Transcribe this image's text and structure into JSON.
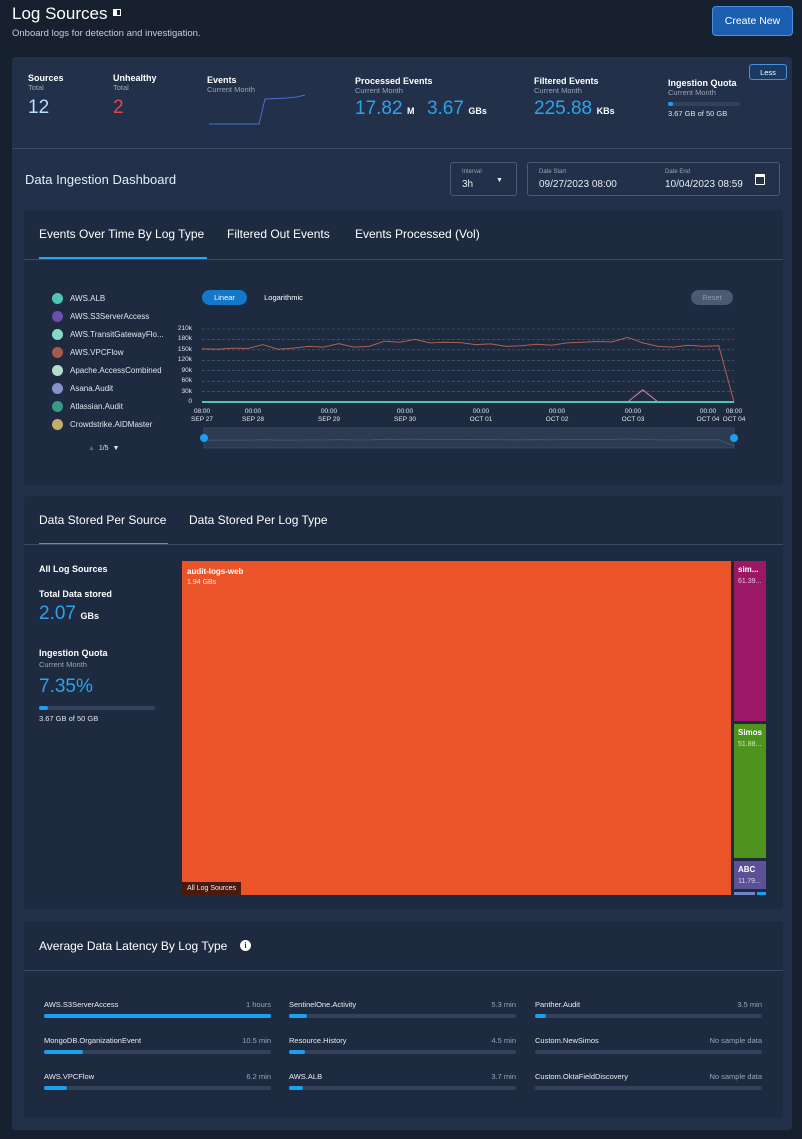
{
  "header": {
    "title": "Log Sources",
    "subtitle": "Onboard logs for detection and investigation.",
    "create_label": "Create New"
  },
  "stats": {
    "sources": {
      "label": "Sources",
      "sub": "Total",
      "value": "12"
    },
    "unhealthy": {
      "label": "Unhealthy",
      "sub": "Total",
      "value": "2",
      "color": "#e0474c"
    },
    "events": {
      "label": "Events",
      "sub": "Current Month"
    },
    "processed": {
      "label": "Processed Events",
      "sub": "Current Month",
      "value1": "17.82",
      "unit1": "M",
      "value2": "3.67",
      "unit2": "GBs"
    },
    "filtered": {
      "label": "Filtered Events",
      "sub": "Current Month",
      "value": "225.88",
      "unit": "KBs"
    },
    "quota": {
      "label": "Ingestion Quota",
      "sub": "Current Month",
      "text": "3.67 GB of 50 GB",
      "fraction": 0.0735
    },
    "less_label": "Less"
  },
  "dashboard": {
    "title": "Data Ingestion Dashboard",
    "interval_label": "Interval",
    "interval_value": "3h",
    "date_start_label": "Date Start",
    "date_start": "09/27/2023 08:00",
    "date_end_label": "Date End",
    "date_end": "10/04/2023 08:59"
  },
  "events_card": {
    "tabs": [
      "Events Over Time By Log Type",
      "Filtered Out Events",
      "Events Processed (Vol)"
    ],
    "active_tab": 0,
    "scale_linear": "Linear",
    "scale_log": "Logarithmic",
    "reset": "Reset",
    "legend": [
      {
        "name": "AWS.ALB",
        "color": "#4fc6b4"
      },
      {
        "name": "AWS.S3ServerAccess",
        "color": "#6a4fb0"
      },
      {
        "name": "AWS.TransitGatewayFlo...",
        "color": "#86d8c6"
      },
      {
        "name": "AWS.VPCFlow",
        "color": "#a65a4c"
      },
      {
        "name": "Apache.AccessCombined",
        "color": "#b5dcc8"
      },
      {
        "name": "Asana.Audit",
        "color": "#8593c8"
      },
      {
        "name": "Atlassian.Audit",
        "color": "#3a9883"
      },
      {
        "name": "Crowdstrike.AIDMaster",
        "color": "#c4ad6c"
      }
    ],
    "legend_page": "1/5"
  },
  "chart_data": {
    "type": "line",
    "ylim": [
      0,
      210000
    ],
    "yticks": [
      "0",
      "30k",
      "60k",
      "90k",
      "120k",
      "150k",
      "180k",
      "210k"
    ],
    "xticks": [
      [
        "08:00",
        "SEP 27"
      ],
      [
        "00:00",
        "SEP 28"
      ],
      [
        "00:00",
        "SEP 29"
      ],
      [
        "00:00",
        "SEP 30"
      ],
      [
        "00:00",
        "OCT 01"
      ],
      [
        "00:00",
        "OCT 02"
      ],
      [
        "00:00",
        "OCT 03"
      ],
      [
        "00:00",
        "OCT 04"
      ],
      [
        "08:00",
        "OCT 04"
      ]
    ],
    "grid": true,
    "series": [
      {
        "color": "#b0614f",
        "values": [
          153000,
          152000,
          155000,
          154000,
          165000,
          152000,
          155000,
          160000,
          158000,
          168000,
          158000,
          160000,
          175000,
          172000,
          180000,
          170000,
          172000,
          171000,
          165000,
          167000,
          160000,
          162000,
          166000,
          163000,
          170000,
          172000,
          174000,
          173000,
          186000,
          170000,
          160000,
          158000,
          163000,
          160000,
          162000,
          0
        ]
      },
      {
        "color": "#d47fae",
        "values": [
          0,
          0,
          0,
          0,
          0,
          0,
          0,
          0,
          0,
          0,
          0,
          0,
          0,
          0,
          0,
          0,
          0,
          0,
          0,
          0,
          0,
          0,
          0,
          0,
          0,
          0,
          0,
          0,
          0,
          35000,
          0,
          0,
          0,
          0,
          0,
          0
        ]
      },
      {
        "color": "#4fc6b4",
        "values": [
          0,
          0,
          0,
          0,
          0,
          0,
          0,
          0,
          0,
          0,
          0,
          0,
          0,
          0,
          0,
          0,
          0,
          0,
          0,
          0,
          0,
          0,
          0,
          0,
          0,
          0,
          0,
          0,
          0,
          0,
          0,
          0,
          0,
          0,
          0,
          0
        ]
      }
    ]
  },
  "storage_card": {
    "tabs": [
      "Data Stored Per Source",
      "Data Stored Per Log Type"
    ],
    "active_tab": 0,
    "heading": "All Log Sources",
    "total_label": "Total Data stored",
    "total_value": "2.07",
    "total_unit": "GBs",
    "quota_label": "Ingestion Quota",
    "quota_sub": "Current Month",
    "quota_pct": "7.35%",
    "quota_text": "3.67 GB of 50 GB",
    "quota_fraction": 0.0735,
    "root_label": "All Log Sources",
    "treemap": [
      {
        "name": "audit-logs-web",
        "size": "1.94 GBs",
        "color": "#ea5428"
      },
      {
        "name": "sim...",
        "size": "61.39...",
        "color": "#9c1766"
      },
      {
        "name": "Simos",
        "size": "51.88...",
        "color": "#4f931f"
      },
      {
        "name": "ABC",
        "size": "11.79...",
        "color": "#5c5196"
      }
    ]
  },
  "latency_card": {
    "title": "Average Data Latency By Log Type",
    "items": [
      {
        "name": "AWS.S3ServerAccess",
        "value": "1 hours",
        "fraction": 1.0
      },
      {
        "name": "SentinelOne.Activity",
        "value": "5.3 min",
        "fraction": 0.08
      },
      {
        "name": "Panther.Audit",
        "value": "3.5 min",
        "fraction": 0.05
      },
      {
        "name": "MongoDB.OrganizationEvent",
        "value": "10.5 min",
        "fraction": 0.17
      },
      {
        "name": "Resource.History",
        "value": "4.5 min",
        "fraction": 0.07
      },
      {
        "name": "Custom.NewSimos",
        "value": "No sample data",
        "fraction": 0
      },
      {
        "name": "AWS.VPCFlow",
        "value": "6.2 min",
        "fraction": 0.1
      },
      {
        "name": "AWS.ALB",
        "value": "3.7 min",
        "fraction": 0.06
      },
      {
        "name": "Custom.OktaFieldDiscovery",
        "value": "No sample data",
        "fraction": 0
      }
    ]
  }
}
